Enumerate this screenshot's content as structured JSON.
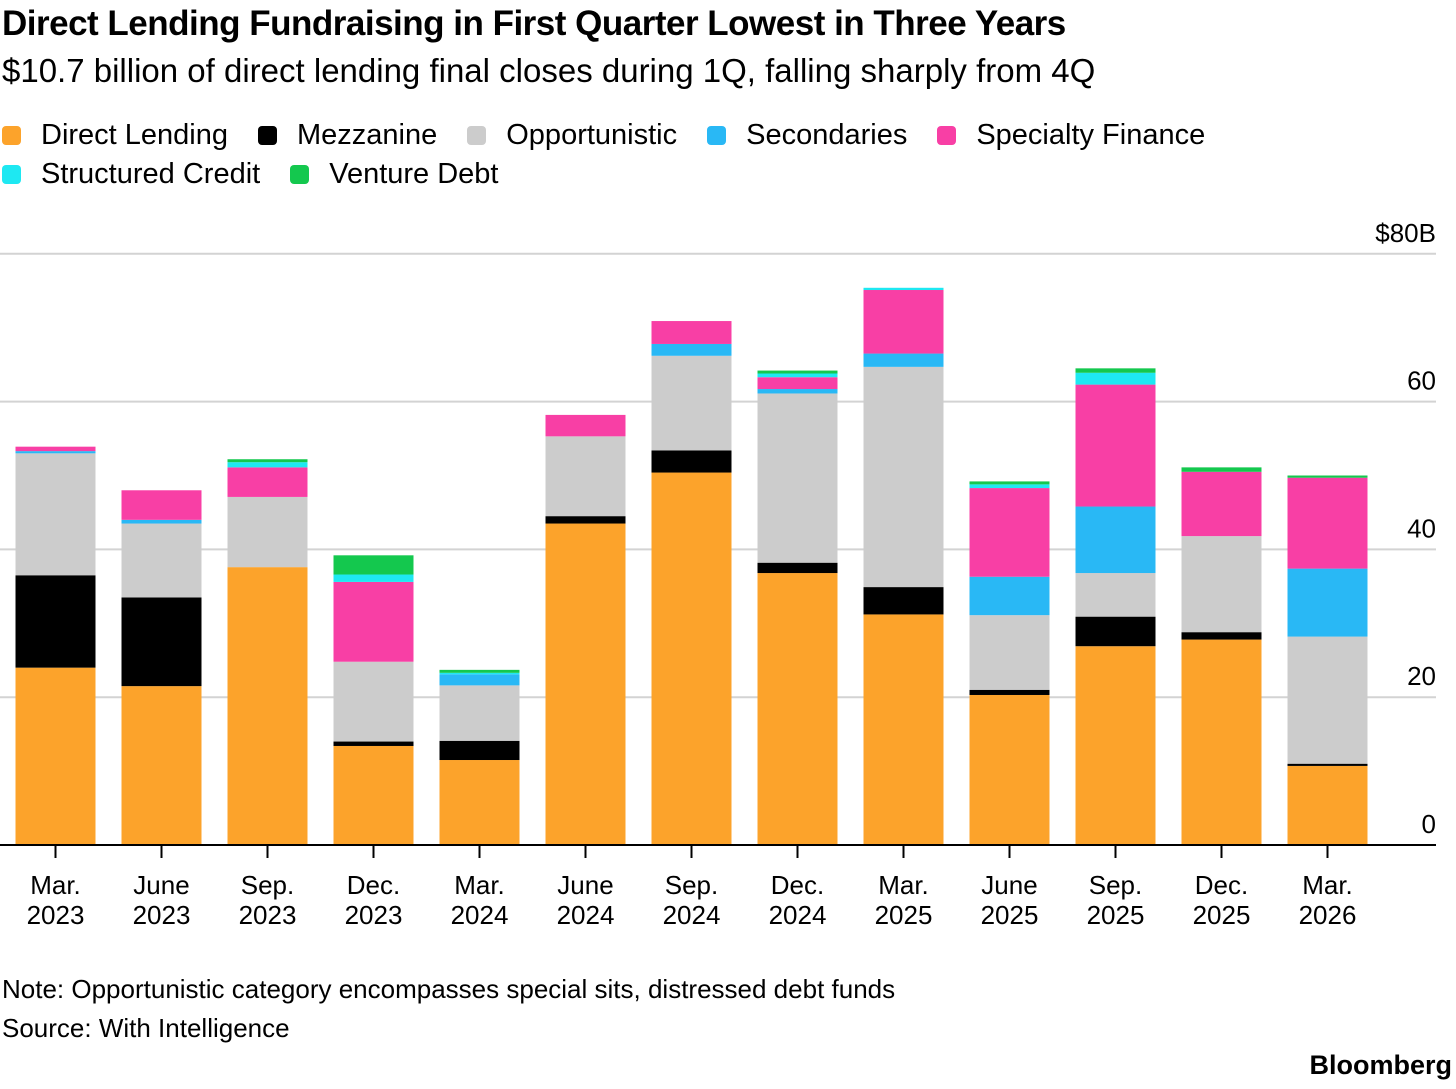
{
  "title": "Direct Lending Fundraising in First Quarter Lowest in Three Years",
  "subtitle": "$10.7 billion of direct lending final closes during 1Q, falling sharply from 4Q",
  "legend": [
    {
      "name": "Direct Lending",
      "color": "#fca32b"
    },
    {
      "name": "Mezzanine",
      "color": "#000000"
    },
    {
      "name": "Opportunistic",
      "color": "#cccccc"
    },
    {
      "name": "Secondaries",
      "color": "#29b8f5"
    },
    {
      "name": "Specialty Finance",
      "color": "#f83fa5"
    },
    {
      "name": "Structured Credit",
      "color": "#1ee8f2"
    },
    {
      "name": "Venture Debt",
      "color": "#14c84e"
    }
  ],
  "chart_data": {
    "type": "bar",
    "stacked": true,
    "categories": [
      [
        "Mar.",
        "2023"
      ],
      [
        "June",
        "2023"
      ],
      [
        "Sep.",
        "2023"
      ],
      [
        "Dec.",
        "2023"
      ],
      [
        "Mar.",
        "2024"
      ],
      [
        "June",
        "2024"
      ],
      [
        "Sep.",
        "2024"
      ],
      [
        "Dec.",
        "2024"
      ],
      [
        "Mar.",
        "2025"
      ],
      [
        "June",
        "2025"
      ],
      [
        "Sep.",
        "2025"
      ],
      [
        "Dec.",
        "2025"
      ],
      [
        "Mar.",
        "2026"
      ]
    ],
    "series": [
      {
        "name": "Direct Lending",
        "color": "#fca32b",
        "values": [
          24.0,
          21.5,
          37.6,
          13.4,
          11.5,
          43.5,
          50.4,
          36.8,
          31.2,
          20.3,
          26.9,
          27.8,
          10.7
        ]
      },
      {
        "name": "Mezzanine",
        "color": "#000000",
        "values": [
          12.5,
          12.0,
          0.0,
          0.6,
          2.6,
          1.0,
          3.0,
          1.4,
          3.7,
          0.7,
          4.0,
          1.0,
          0.3
        ]
      },
      {
        "name": "Opportunistic",
        "color": "#cccccc",
        "values": [
          16.5,
          10.0,
          9.5,
          10.8,
          7.5,
          10.8,
          12.8,
          22.9,
          29.8,
          10.1,
          5.9,
          13.0,
          17.2
        ]
      },
      {
        "name": "Secondaries",
        "color": "#29b8f5",
        "values": [
          0.3,
          0.5,
          0.0,
          0.0,
          1.5,
          0.0,
          1.6,
          0.6,
          1.8,
          5.2,
          9.0,
          0.0,
          9.2
        ]
      },
      {
        "name": "Specialty Finance",
        "color": "#f83fa5",
        "values": [
          0.6,
          4.0,
          4.0,
          10.8,
          0.0,
          2.9,
          3.1,
          1.6,
          8.6,
          12.0,
          16.5,
          8.7,
          12.3
        ]
      },
      {
        "name": "Structured Credit",
        "color": "#1ee8f2",
        "values": [
          0.0,
          0.0,
          0.7,
          1.0,
          0.2,
          0.0,
          0.0,
          0.5,
          0.3,
          0.5,
          1.6,
          0.0,
          0.0
        ]
      },
      {
        "name": "Venture Debt",
        "color": "#14c84e",
        "values": [
          0.0,
          0.0,
          0.4,
          2.6,
          0.4,
          0.0,
          0.0,
          0.4,
          0.0,
          0.4,
          0.6,
          0.6,
          0.3
        ]
      }
    ],
    "yaxis": {
      "ticks": [
        0,
        20,
        40,
        60,
        80
      ],
      "tick_labels": [
        "0",
        "20",
        "40",
        "60",
        "$80B"
      ],
      "range": [
        0,
        80
      ],
      "position": "right"
    },
    "grid": true,
    "legend_position": "top"
  },
  "notes": [
    "Note: Opportunistic category encompasses special sits, distressed debt funds",
    "Source: With Intelligence"
  ],
  "logo": "Bloomberg"
}
